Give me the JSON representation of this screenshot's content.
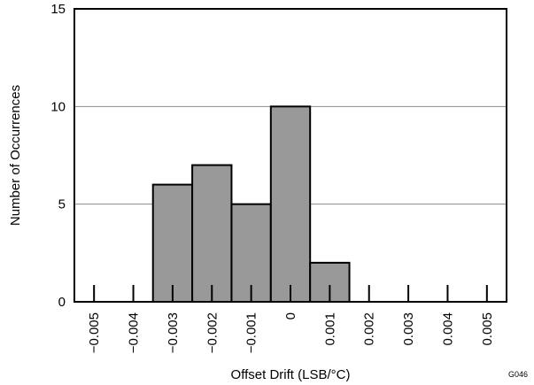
{
  "chart_data": {
    "type": "bar",
    "categories": [
      "-0.005",
      "-0.004",
      "-0.003",
      "-0.002",
      "-0.001",
      "0",
      "0.001",
      "0.002",
      "0.003",
      "0.004",
      "0.005"
    ],
    "x_tick_labels": [
      "−0.005",
      "−0.004",
      "−0.003",
      "−0.002",
      "−0.001",
      "0",
      "0.001",
      "0.002",
      "0.003",
      "0.004",
      "0.005"
    ],
    "values": [
      0,
      0,
      6,
      7,
      5,
      10,
      2,
      0,
      0,
      0,
      0
    ],
    "xlabel": "Offset Drift (LSB/°C)",
    "ylabel": "Number of Occurrences",
    "ylim": [
      0,
      15
    ],
    "y_ticks": [
      0,
      5,
      10,
      15
    ],
    "grid": true,
    "bar_color": "#999999",
    "figure_code": "G046"
  }
}
